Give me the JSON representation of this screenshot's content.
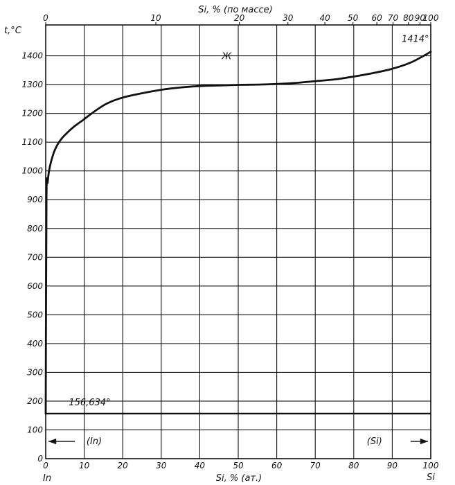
{
  "chart_data": {
    "type": "line",
    "title": "",
    "ylabel": "t,°C",
    "xlabel_bottom": "Si, % (ат.)",
    "xlabel_top": "Si, % (по массе)",
    "ylim": [
      0,
      1500
    ],
    "xlim": [
      0,
      100
    ],
    "grid": true,
    "y_ticks": [
      0,
      100,
      200,
      300,
      400,
      500,
      600,
      700,
      800,
      900,
      1000,
      1100,
      1200,
      1300,
      1400
    ],
    "x_ticks_bottom": [
      0,
      10,
      20,
      30,
      40,
      50,
      60,
      70,
      80,
      90,
      100
    ],
    "x_ticks_top": [
      0,
      10,
      20,
      30,
      40,
      50,
      60,
      70,
      80,
      90,
      100
    ],
    "x_ticks_top_at": [
      0,
      28.6,
      50.3,
      62.9,
      72.5,
      79.8,
      86.0,
      90.2,
      94.2,
      97.2,
      100
    ],
    "left_component": "In",
    "right_component": "Si",
    "series": [
      {
        "x": [
          0,
          0.2,
          0.5,
          1,
          2,
          3,
          4,
          5,
          7,
          10,
          13,
          16,
          20,
          25,
          30,
          35,
          40,
          45,
          50,
          55,
          60,
          65,
          70,
          75,
          80,
          85,
          90,
          95,
          100
        ],
        "y": [
          156.634,
          900,
          960,
          1010,
          1060,
          1090,
          1110,
          1125,
          1150,
          1180,
          1210,
          1235,
          1255,
          1270,
          1282,
          1290,
          1295,
          1297,
          1299,
          1300,
          1302,
          1306,
          1312,
          1318,
          1328,
          1340,
          1355,
          1378,
          1414
        ]
      },
      {
        "x": [
          0,
          100
        ],
        "y": [
          156.634,
          156.634
        ]
      }
    ],
    "annotations": [
      {
        "text": "Ж",
        "x": 47,
        "y": 1400
      },
      {
        "text": "1414°",
        "x": 96,
        "y": 1448
      },
      {
        "text": "156,634°",
        "x": 6,
        "y": 185
      }
    ],
    "phase_regions": [
      {
        "label": "(In)",
        "y": 60,
        "x_from": 0,
        "x_to": 16
      },
      {
        "label": "(Si)",
        "y": 60,
        "x_from": 80,
        "x_to": 100
      }
    ]
  }
}
